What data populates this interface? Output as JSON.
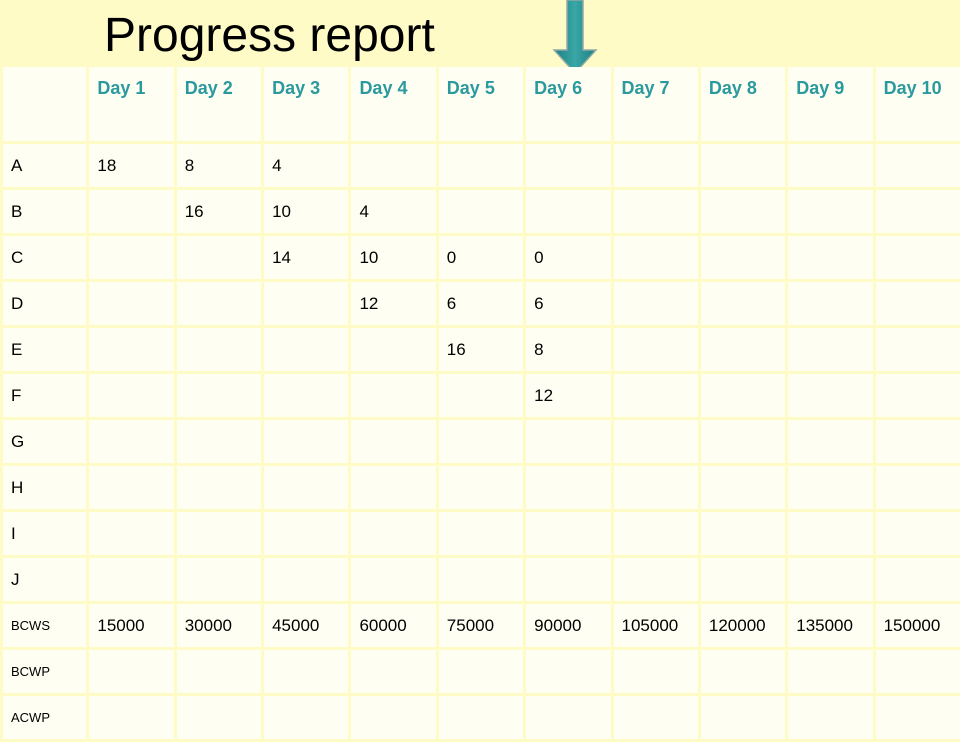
{
  "title": "Progress report",
  "colors": {
    "header_text": "#2a9a9e",
    "background": "#fefbc6",
    "arrow": "#2a8f8f"
  },
  "icons": {
    "marker": "down-arrow-icon"
  },
  "columns": [
    "Day 1",
    "Day 2",
    "Day 3",
    "Day 4",
    "Day 5",
    "Day 6",
    "Day 7",
    "Day 8",
    "Day 9",
    "Day 10"
  ],
  "rows": [
    {
      "label": "A",
      "cells": [
        "18",
        "8",
        "4",
        "",
        "",
        "",
        "",
        "",
        "",
        ""
      ]
    },
    {
      "label": "B",
      "cells": [
        "",
        "16",
        "10",
        "4",
        "",
        "",
        "",
        "",
        "",
        ""
      ]
    },
    {
      "label": "C",
      "cells": [
        "",
        "",
        "14",
        "10",
        "0",
        "0",
        "",
        "",
        "",
        ""
      ]
    },
    {
      "label": "D",
      "cells": [
        "",
        "",
        "",
        "12",
        "6",
        "6",
        "",
        "",
        "",
        ""
      ]
    },
    {
      "label": "E",
      "cells": [
        "",
        "",
        "",
        "",
        "16",
        "8",
        "",
        "",
        "",
        ""
      ]
    },
    {
      "label": "F",
      "cells": [
        "",
        "",
        "",
        "",
        "",
        "12",
        "",
        "",
        "",
        ""
      ]
    },
    {
      "label": "G",
      "cells": [
        "",
        "",
        "",
        "",
        "",
        "",
        "",
        "",
        "",
        ""
      ]
    },
    {
      "label": "H",
      "cells": [
        "",
        "",
        "",
        "",
        "",
        "",
        "",
        "",
        "",
        ""
      ]
    },
    {
      "label": "I",
      "cells": [
        "",
        "",
        "",
        "",
        "",
        "",
        "",
        "",
        "",
        ""
      ]
    },
    {
      "label": "J",
      "cells": [
        "",
        "",
        "",
        "",
        "",
        "",
        "",
        "",
        "",
        ""
      ]
    },
    {
      "label": "BCWS",
      "cells": [
        "15000",
        "30000",
        "45000",
        "60000",
        "75000",
        "90000",
        "105000",
        "120000",
        "135000",
        "150000"
      ]
    },
    {
      "label": "BCWP",
      "cells": [
        "",
        "",
        "",
        "",
        "",
        "",
        "",
        "",
        "",
        ""
      ]
    },
    {
      "label": "ACWP",
      "cells": [
        "",
        "",
        "",
        "",
        "",
        "",
        "",
        "",
        "",
        ""
      ]
    }
  ]
}
